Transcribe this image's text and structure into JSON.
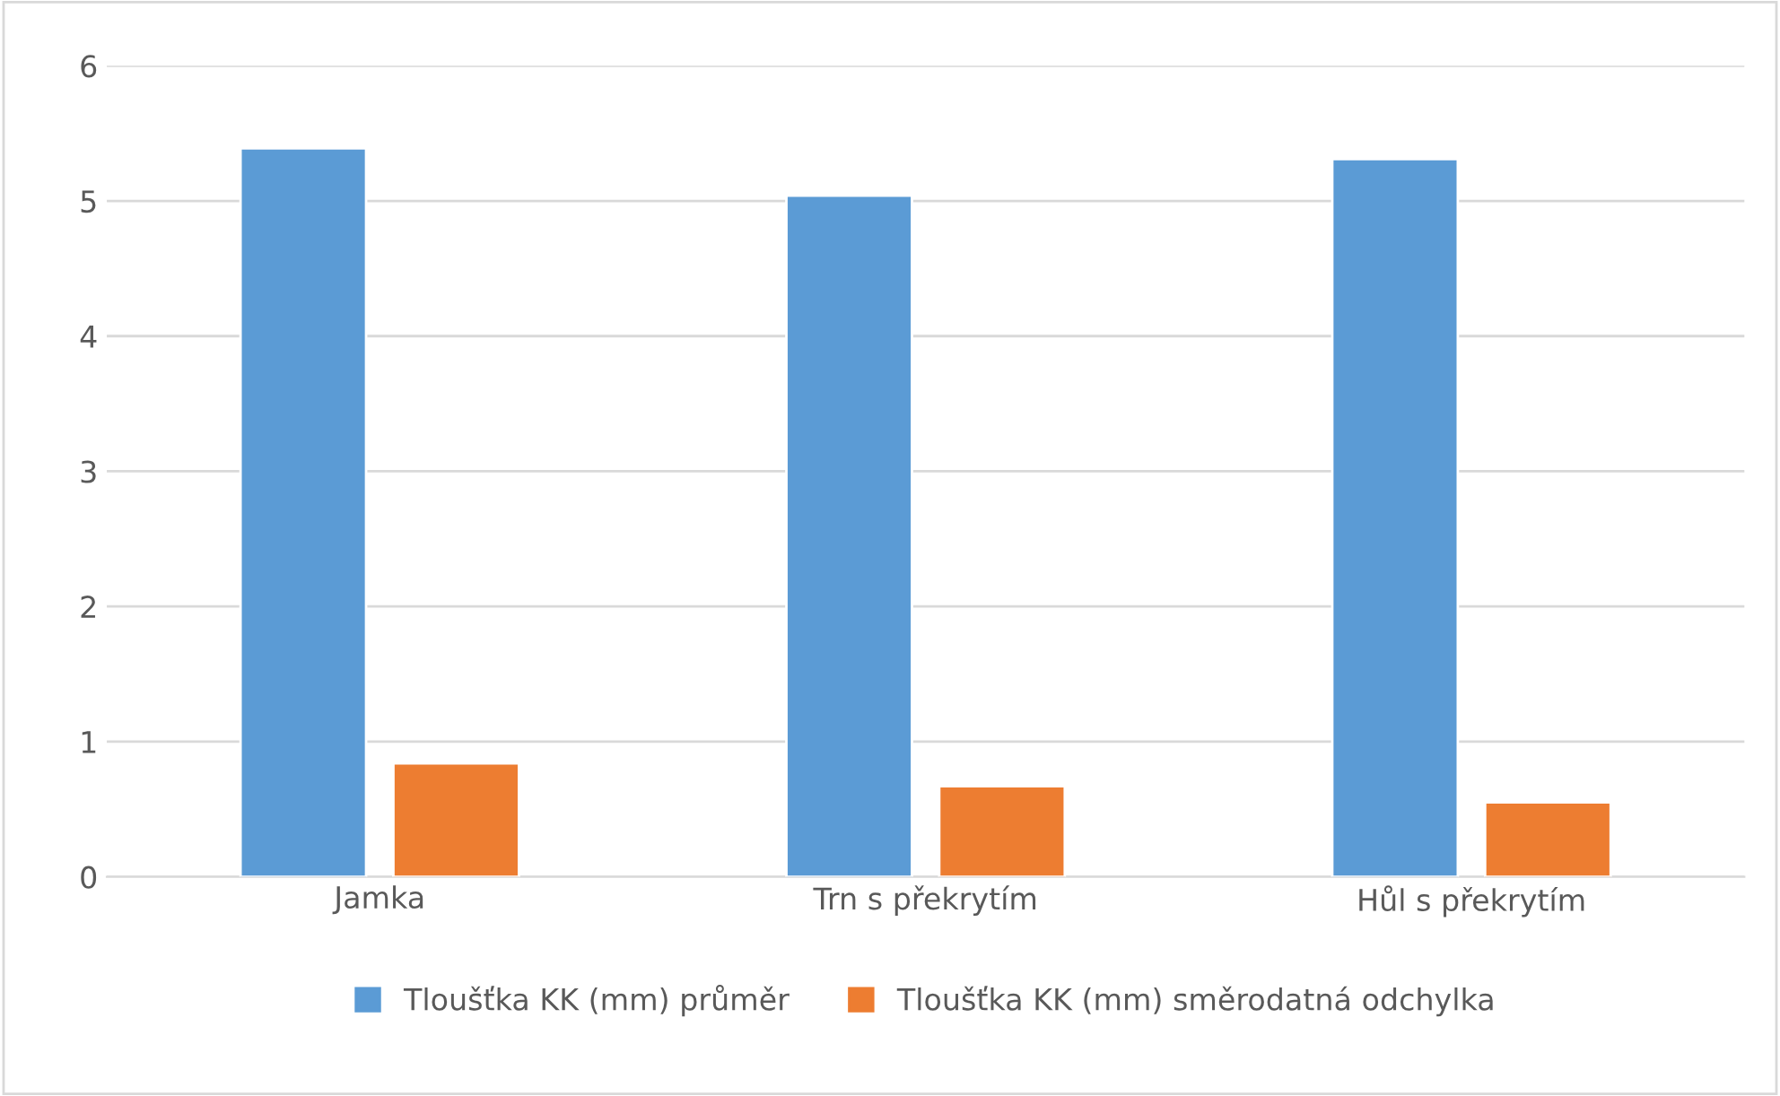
{
  "chart_data": {
    "type": "bar",
    "categories": [
      "Jamka",
      "Trn s překrytím",
      "Hůl s překrytím"
    ],
    "series": [
      {
        "name": "Tloušťka KK (mm) průměr",
        "color": "#5b9bd5",
        "values": [
          5.39,
          5.04,
          5.31
        ]
      },
      {
        "name": "Tloušťka KK (mm) směrodatná odchylka",
        "color": "#ed7d31",
        "values": [
          0.84,
          0.67,
          0.55
        ]
      }
    ],
    "ylim": [
      0,
      6
    ],
    "yticks": [
      0,
      1,
      2,
      3,
      4,
      5,
      6
    ],
    "grid": "y",
    "legend": "bottom"
  }
}
